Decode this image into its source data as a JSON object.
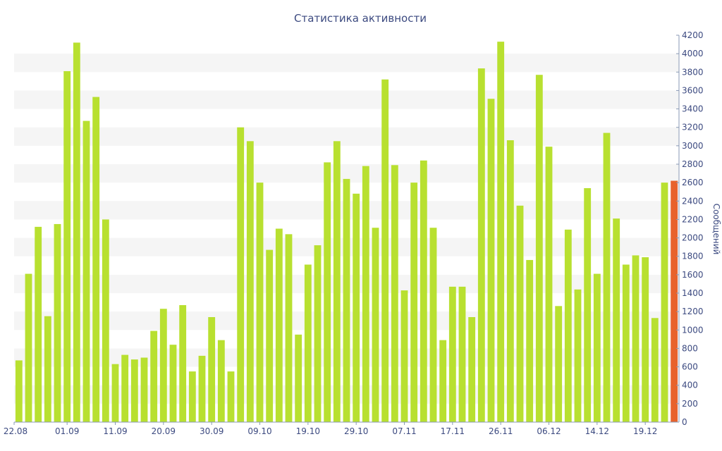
{
  "chart_data": {
    "type": "bar",
    "title": "Статистика активности",
    "ylabel": "Сообщений",
    "xlabel": "",
    "ylim": [
      0,
      4200
    ],
    "y_ticks": [
      0,
      200,
      400,
      600,
      800,
      1000,
      1200,
      1400,
      1600,
      1800,
      2000,
      2200,
      2400,
      2600,
      2800,
      3000,
      3200,
      3400,
      3600,
      3800,
      4000,
      4200
    ],
    "y_axis_side": "right",
    "grid": "alternating horizontal bands",
    "x_tick_labels": [
      {
        "index": 0,
        "label": "22.08"
      },
      {
        "index": 5,
        "label": "01.09"
      },
      {
        "index": 10,
        "label": "11.09"
      },
      {
        "index": 15,
        "label": "20.09"
      },
      {
        "index": 20,
        "label": "30.09"
      },
      {
        "index": 25,
        "label": "09.10"
      },
      {
        "index": 30,
        "label": "19.10"
      },
      {
        "index": 35,
        "label": "29.10"
      },
      {
        "index": 40,
        "label": "07.11"
      },
      {
        "index": 45,
        "label": "17.11"
      },
      {
        "index": 50,
        "label": "26.11"
      },
      {
        "index": 55,
        "label": "06.12"
      },
      {
        "index": 60,
        "label": "14.12"
      },
      {
        "index": 65,
        "label": "19.12"
      }
    ],
    "values": [
      670,
      1610,
      2120,
      1150,
      2150,
      3810,
      4120,
      3270,
      3530,
      2200,
      630,
      730,
      680,
      700,
      990,
      1230,
      840,
      1270,
      550,
      720,
      1140,
      890,
      550,
      3200,
      3050,
      2600,
      1870,
      2100,
      2040,
      950,
      1710,
      1920,
      2820,
      3050,
      2640,
      2480,
      2780,
      2110,
      3720,
      2790,
      1430,
      2600,
      2840,
      2110,
      890,
      1470,
      1470,
      1140,
      3840,
      3510,
      4130,
      3060,
      2350,
      1760,
      3770,
      2990,
      1260,
      2090,
      1440,
      2540,
      1610,
      3140,
      2210,
      1710,
      1810,
      1790,
      1130,
      2600,
      2620
    ],
    "colors": {
      "bar": "#b8e030",
      "highlight_bar": "#e8622c",
      "band": "#f5f5f5",
      "text": "#3c4a80",
      "axis": "#8a9ab5"
    },
    "highlight_last": true
  }
}
